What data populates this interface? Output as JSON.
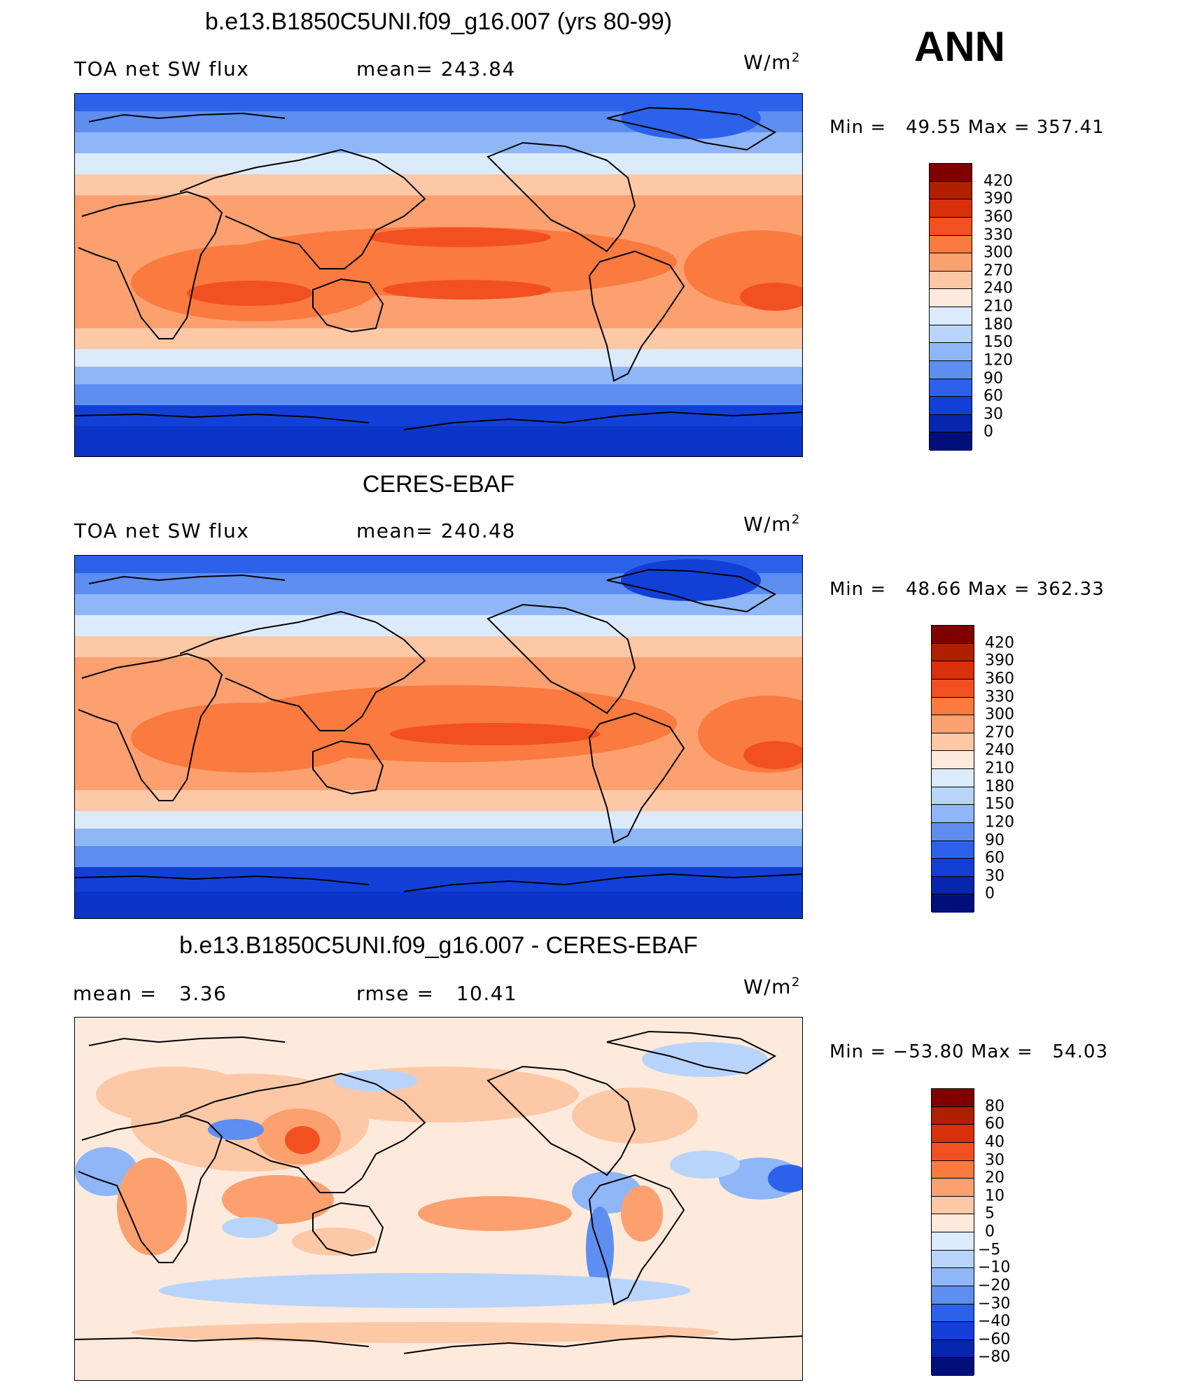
{
  "season": "ANN",
  "unit_base": "W/m",
  "unit_sup": "2",
  "panels": [
    {
      "title": "b.e13.B1850C5UNI.f09_g16.007 (yrs 80-99)",
      "left_label": "TOA net SW flux",
      "mid_label": "mean=",
      "mid_value": "243.84",
      "min_label": "Min =",
      "min_value": "49.55",
      "max_label": "Max =",
      "max_value": "357.41"
    },
    {
      "title": "CERES-EBAF",
      "left_label": "TOA net SW flux",
      "mid_label": "mean=",
      "mid_value": "240.48",
      "min_label": "Min =",
      "min_value": "48.66",
      "max_label": "Max =",
      "max_value": "362.33"
    },
    {
      "title": "b.e13.B1850C5UNI.f09_g16.007 - CERES-EBAF",
      "left_label": "mean =",
      "left_value": "3.36",
      "mid_label": "rmse =",
      "mid_value": "10.41",
      "min_label": "Min =",
      "min_value": "−53.80",
      "max_label": "Max =",
      "max_value": "54.03"
    }
  ],
  "colorbar_flux": {
    "labels": [
      "420",
      "390",
      "360",
      "330",
      "300",
      "270",
      "240",
      "210",
      "180",
      "150",
      "120",
      "90",
      "60",
      "30",
      "0"
    ],
    "colors": [
      "#800000",
      "#b01f00",
      "#d8300a",
      "#f25020",
      "#fa7a40",
      "#fca070",
      "#fdc8a6",
      "#fdeadc",
      "#dcebfc",
      "#b8d4fb",
      "#8fb6f6",
      "#5d8ef0",
      "#2c62ea",
      "#1240d6",
      "#0626b0",
      "#000f7a"
    ]
  },
  "colorbar_diff": {
    "labels": [
      "80",
      "60",
      "40",
      "30",
      "20",
      "10",
      "5",
      "0",
      "−5",
      "−10",
      "−20",
      "−30",
      "−40",
      "−60",
      "−80"
    ],
    "colors": [
      "#800000",
      "#b01f00",
      "#d8300a",
      "#f25020",
      "#fa7a40",
      "#fca070",
      "#fdc8a6",
      "#fdeadc",
      "#dcebfc",
      "#b8d4fb",
      "#8fb6f6",
      "#5d8ef0",
      "#2c62ea",
      "#1240d6",
      "#0626b0",
      "#000f7a"
    ]
  }
}
